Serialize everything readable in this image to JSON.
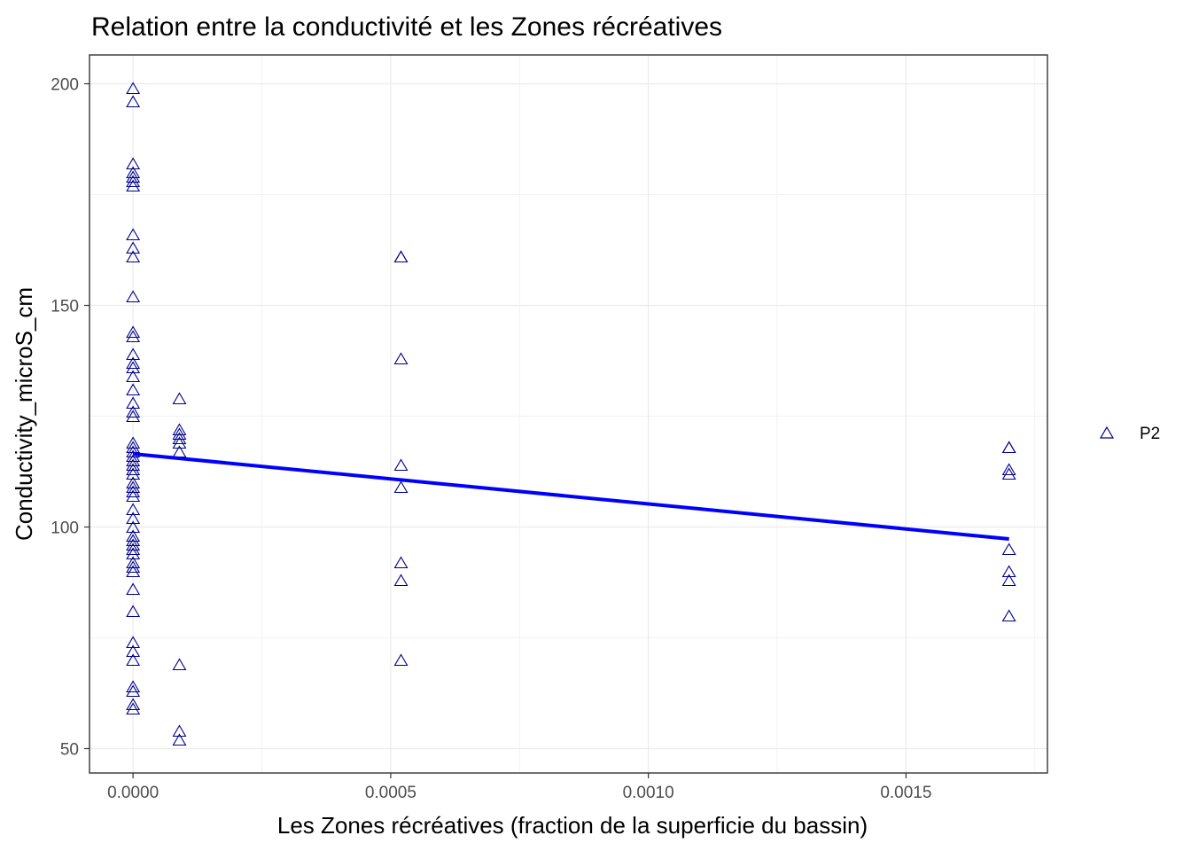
{
  "chart_data": {
    "type": "scatter",
    "title": "Relation entre la conductivité et les Zones récréatives",
    "xlabel": "Les Zones récréatives (fraction de la superficie du bassin)",
    "ylabel": "Conductivity_microS_cm",
    "xlim": [
      -8.45e-05,
      0.0017745
    ],
    "ylim": [
      44.5,
      206.5
    ],
    "x_ticks": [
      0.0,
      0.0005,
      0.001,
      0.0015
    ],
    "x_tick_labels": [
      "0.0000",
      "0.0005",
      "0.0010",
      "0.0015"
    ],
    "y_ticks": [
      50,
      100,
      150,
      200
    ],
    "y_tick_labels": [
      "50",
      "100",
      "150",
      "200"
    ],
    "grid": true,
    "marker_color": "#00008B",
    "line_color": "#0000FF",
    "legend": {
      "position": "right",
      "entries": [
        {
          "label": "P2",
          "marker": "open-triangle"
        }
      ]
    },
    "series": [
      {
        "name": "P2",
        "x": [
          0,
          0,
          0,
          0,
          0,
          0,
          0,
          0,
          0,
          0,
          0,
          0,
          0,
          0,
          0,
          0,
          0,
          0,
          0,
          0,
          0,
          0,
          0,
          0,
          0,
          0,
          0,
          0,
          0,
          0,
          0,
          0,
          0,
          0,
          0,
          0,
          0,
          0,
          0,
          0,
          0,
          0,
          0,
          0,
          0,
          0,
          0,
          0,
          0,
          0,
          0,
          0,
          0,
          9e-05,
          9e-05,
          9e-05,
          9e-05,
          9e-05,
          9e-05,
          9e-05,
          9e-05,
          9e-05,
          0.00052,
          0.00052,
          0.00052,
          0.00052,
          0.00052,
          0.00052,
          0.00052,
          0.00052,
          0.0017,
          0.0017,
          0.0017,
          0.0017,
          0.0017,
          0.0017,
          0.0017,
          0.0017
        ],
        "y": [
          199,
          196,
          182,
          180,
          179,
          178,
          177,
          166,
          163,
          161,
          152,
          144,
          143,
          139,
          137,
          136,
          134,
          131,
          128,
          126,
          125,
          119,
          118,
          117,
          116,
          115,
          114,
          113,
          112,
          109,
          108,
          107,
          104,
          102,
          100,
          98,
          97,
          96,
          95,
          94,
          92,
          91,
          90,
          86,
          81,
          74,
          72,
          70,
          64,
          63,
          60,
          59,
          110,
          129,
          122,
          120,
          119,
          117,
          69,
          54,
          52,
          121,
          161,
          138,
          114,
          109,
          92,
          88,
          70,
          161,
          118,
          113,
          112,
          95,
          90,
          88,
          80,
          118
        ]
      }
    ],
    "fit_line": {
      "type": "linear",
      "x": [
        0.0,
        0.0017
      ],
      "y": [
        116.5,
        97.3
      ]
    }
  }
}
